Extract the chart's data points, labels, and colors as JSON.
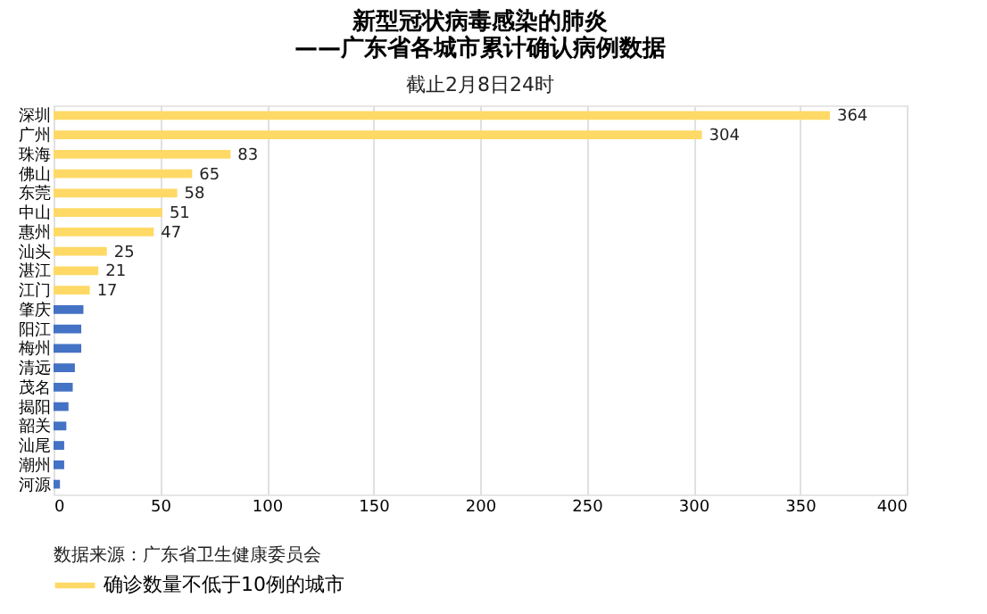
{
  "chart_data": {
    "type": "bar",
    "orientation": "horizontal",
    "title": [
      "新型冠状病毒感染的肺炎",
      "——广东省各城市累计确认病例数据"
    ],
    "subtitle": "截止2月8日24时",
    "categories": [
      "深圳",
      "广州",
      "珠海",
      "佛山",
      "东莞",
      "中山",
      "惠州",
      "汕头",
      "湛江",
      "江门",
      "肇庆",
      "阳江",
      "梅州",
      "清远",
      "茂名",
      "揭阳",
      "韶关",
      "汕尾",
      "潮州",
      "河源"
    ],
    "series": [
      {
        "name": "确诊数量不低于10例的城市",
        "color": "#ffd966",
        "values": [
          364,
          304,
          83,
          65,
          58,
          51,
          47,
          25,
          21,
          17,
          null,
          null,
          null,
          null,
          null,
          null,
          null,
          null,
          null,
          null
        ],
        "value_labels": [
          "364",
          "304",
          "83",
          "65",
          "58",
          "51",
          "47",
          "25",
          "21",
          "17",
          null,
          null,
          null,
          null,
          null,
          null,
          null,
          null,
          null,
          null
        ]
      },
      {
        "color": "#4472c4",
        "values": [
          null,
          null,
          null,
          null,
          null,
          null,
          null,
          null,
          null,
          null,
          14,
          13,
          13,
          10,
          9,
          7,
          6,
          5,
          5,
          3
        ]
      }
    ],
    "xlim": [
      0,
      400
    ],
    "xticks": [
      0,
      50,
      100,
      150,
      200,
      250,
      300,
      350,
      400
    ],
    "grid": "x",
    "legend": "bottom",
    "annotations": [
      "数据来源：广东省卫生健康委员会"
    ]
  }
}
